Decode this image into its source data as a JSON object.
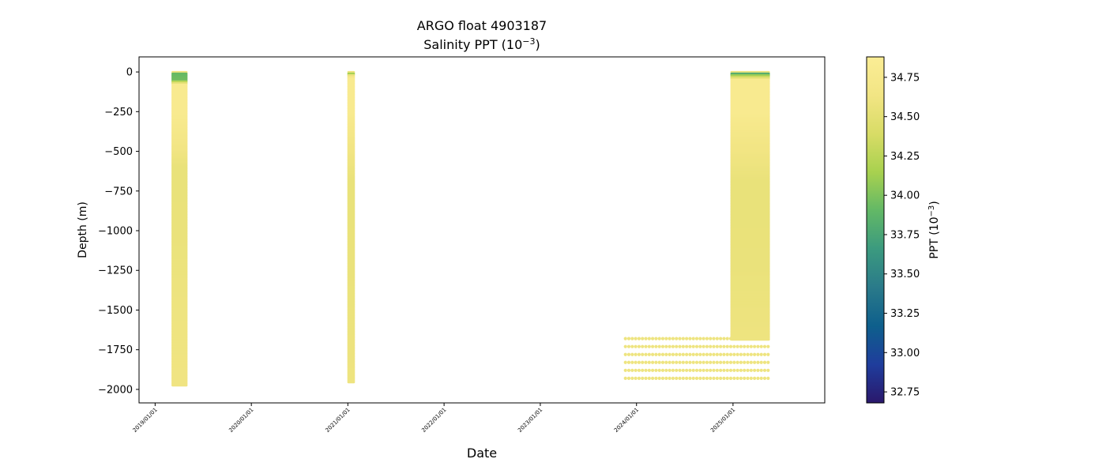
{
  "chart_data": {
    "type": "scatter",
    "title_line1": "ARGO float 4903187",
    "title_line2_prefix": "Salinity PPT (10",
    "title_line2_sup": "−3",
    "title_line2_suffix": ")",
    "xlabel": "Date",
    "ylabel": "Depth (m)",
    "colorbar_label_prefix": "PPT (10",
    "colorbar_label_sup": "−3",
    "colorbar_label_suffix": ")",
    "colormap": "haline",
    "colormap_stops": [
      "#2a186c",
      "#1f3d9c",
      "#0e5f8c",
      "#2a7a8a",
      "#3b9a7f",
      "#62b866",
      "#a8d14f",
      "#d8dc66",
      "#f2e584",
      "#fbed95"
    ],
    "xlim": [
      "2018-11-01",
      "2025-12-15"
    ],
    "ylim": [
      -2085,
      95
    ],
    "xticks": [
      {
        "date": "2019-01-01",
        "label": "2019/01/01"
      },
      {
        "date": "2020-01-01",
        "label": "2020/01/01"
      },
      {
        "date": "2021-01-01",
        "label": "2021/01/01"
      },
      {
        "date": "2022-01-01",
        "label": "2022/01/01"
      },
      {
        "date": "2023-01-01",
        "label": "2023/01/01"
      },
      {
        "date": "2024-01-01",
        "label": "2024/01/01"
      },
      {
        "date": "2025-01-01",
        "label": "2025/01/01"
      }
    ],
    "yticks": [
      {
        "value": 0,
        "label": "0"
      },
      {
        "value": -250,
        "label": "−250"
      },
      {
        "value": -500,
        "label": "−500"
      },
      {
        "value": -750,
        "label": "−750"
      },
      {
        "value": -1000,
        "label": "−1000"
      },
      {
        "value": -1250,
        "label": "−1250"
      },
      {
        "value": -1500,
        "label": "−1500"
      },
      {
        "value": -1750,
        "label": "−1750"
      },
      {
        "value": -2000,
        "label": "−2000"
      }
    ],
    "clim": [
      32.68,
      34.88
    ],
    "colorbar_ticks": [
      {
        "value": 32.75,
        "label": "32.75"
      },
      {
        "value": 33.0,
        "label": "33.00"
      },
      {
        "value": 33.25,
        "label": "33.25"
      },
      {
        "value": 33.5,
        "label": "33.50"
      },
      {
        "value": 33.75,
        "label": "33.75"
      },
      {
        "value": 34.0,
        "label": "34.00"
      },
      {
        "value": 34.25,
        "label": "34.25"
      },
      {
        "value": 34.5,
        "label": "34.50"
      },
      {
        "value": 34.75,
        "label": "34.75"
      }
    ],
    "profile_bands": [
      {
        "start": "2019-03-10",
        "end": "2019-04-28",
        "max_depth": -1980,
        "salinity_profile": [
          [
            0,
            33.9
          ],
          [
            -50,
            33.95
          ],
          [
            -80,
            34.8
          ],
          [
            -250,
            34.8
          ],
          [
            -400,
            34.7
          ],
          [
            -600,
            34.55
          ],
          [
            -1000,
            34.56
          ],
          [
            -1500,
            34.6
          ],
          [
            -1980,
            34.62
          ]
        ]
      },
      {
        "start": "2021-01-05",
        "end": "2021-01-22",
        "max_depth": -1960,
        "salinity_profile": [
          [
            0,
            33.4
          ],
          [
            -15,
            34.5
          ],
          [
            -40,
            34.8
          ],
          [
            -250,
            34.8
          ],
          [
            -450,
            34.65
          ],
          [
            -700,
            34.55
          ],
          [
            -1200,
            34.56
          ],
          [
            -1960,
            34.6
          ]
        ]
      },
      {
        "start": "2024-12-28",
        "end": "2025-05-15",
        "max_depth": -1690,
        "salinity_profile": [
          [
            0,
            33.5
          ],
          [
            -20,
            34.1
          ],
          [
            -50,
            34.8
          ],
          [
            -250,
            34.8
          ],
          [
            -450,
            34.65
          ],
          [
            -700,
            34.55
          ],
          [
            -1200,
            34.56
          ],
          [
            -1690,
            34.6
          ]
        ]
      }
    ],
    "sparse_points": {
      "start": "2023-11-20",
      "end": "2025-05-15",
      "salinity": 34.6,
      "depth_rows": [
        -1680,
        -1730,
        -1780,
        -1830,
        -1880,
        -1930
      ]
    }
  }
}
